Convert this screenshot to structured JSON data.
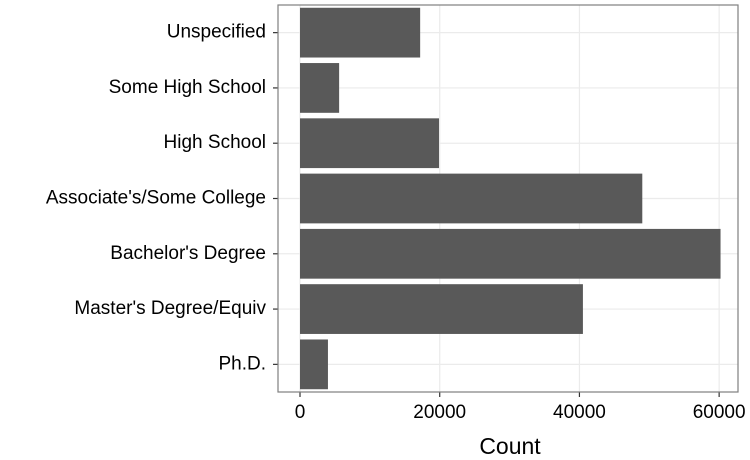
{
  "chart_data": {
    "type": "bar",
    "orientation": "horizontal",
    "x_label": "Count",
    "categories": [
      "Unspecified",
      "Some High School",
      "High School",
      "Associate's/Some College",
      "Bachelor's Degree",
      "Master's Degree/Equiv",
      "Ph.D."
    ],
    "values": [
      17200,
      5600,
      19900,
      49000,
      60200,
      40500,
      4000
    ],
    "color": "#595959",
    "xlim": [
      -3150,
      62700
    ],
    "xticks": [
      0,
      20000,
      40000,
      60000
    ],
    "grid": true
  }
}
